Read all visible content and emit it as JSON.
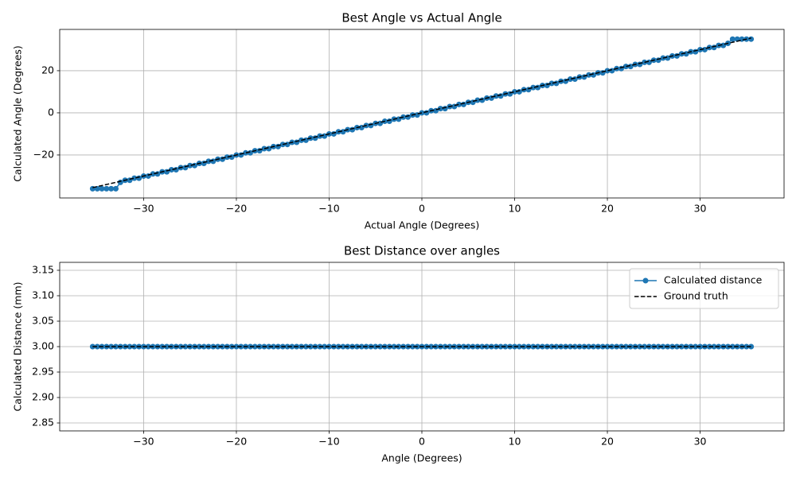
{
  "chart_data": [
    {
      "type": "line",
      "title": "Best Angle vs Actual Angle",
      "xlabel": "Actual Angle (Degrees)",
      "ylabel": "Calculated Angle (Degrees)",
      "xlim": [
        -39.05,
        39.05
      ],
      "ylim": [
        -40.4,
        39.6
      ],
      "grid": true,
      "xticks": [
        {
          "value": -30,
          "label": "−30"
        },
        {
          "value": -20,
          "label": "−20"
        },
        {
          "value": -10,
          "label": "−10"
        },
        0,
        10,
        20,
        30
      ],
      "yticks": [
        {
          "value": -20,
          "label": "−20"
        },
        0,
        20
      ],
      "x": [
        -35.5,
        -35,
        -34.5,
        -34,
        -33.5,
        -33,
        -32.5,
        -32,
        -31.5,
        -31,
        -30.5,
        -30,
        -29.5,
        -29,
        -28.5,
        -28,
        -27.5,
        -27,
        -26.5,
        -26,
        -25.5,
        -25,
        -24.5,
        -24,
        -23.5,
        -23,
        -22.5,
        -22,
        -21.5,
        -21,
        -20.5,
        -20,
        -19.5,
        -19,
        -18.5,
        -18,
        -17.5,
        -17,
        -16.5,
        -16,
        -15.5,
        -15,
        -14.5,
        -14,
        -13.5,
        -13,
        -12.5,
        -12,
        -11.5,
        -11,
        -10.5,
        -10,
        -9.5,
        -9,
        -8.5,
        -8,
        -7.5,
        -7,
        -6.5,
        -6,
        -5.5,
        -5,
        -4.5,
        -4,
        -3.5,
        -3,
        -2.5,
        -2,
        -1.5,
        -1,
        -0.5,
        0,
        0.5,
        1,
        1.5,
        2,
        2.5,
        3,
        3.5,
        4,
        4.5,
        5,
        5.5,
        6,
        6.5,
        7,
        7.5,
        8,
        8.5,
        9,
        9.5,
        10,
        10.5,
        11,
        11.5,
        12,
        12.5,
        13,
        13.5,
        14,
        14.5,
        15,
        15.5,
        16,
        16.5,
        17,
        17.5,
        18,
        18.5,
        19,
        19.5,
        20,
        20.5,
        21,
        21.5,
        22,
        22.5,
        23,
        23.5,
        24,
        24.5,
        25,
        25.5,
        26,
        26.5,
        27,
        27.5,
        28,
        28.5,
        29,
        29.5,
        30,
        30.5,
        31,
        31.5,
        32,
        32.5,
        33,
        33.5,
        34,
        34.5,
        35,
        35.5
      ],
      "series": [
        {
          "color": "#1f77b4",
          "marker": "o",
          "values": [
            -36,
            -36,
            -36,
            -36,
            -36,
            -36,
            -33,
            -32,
            -32,
            -31,
            -31,
            -30,
            -30,
            -29,
            -29,
            -28,
            -28,
            -27,
            -27,
            -26,
            -26,
            -25,
            -25,
            -24,
            -24,
            -23,
            -23,
            -22,
            -22,
            -21,
            -21,
            -20,
            -20,
            -19,
            -19,
            -18,
            -18,
            -17,
            -17,
            -16,
            -16,
            -15,
            -15,
            -14,
            -14,
            -13,
            -13,
            -12,
            -12,
            -11,
            -11,
            -10,
            -10,
            -9,
            -9,
            -8,
            -8,
            -7,
            -7,
            -6,
            -6,
            -5,
            -5,
            -4,
            -4,
            -3,
            -3,
            -2,
            -2,
            -1,
            -1,
            0,
            0,
            1,
            1,
            2,
            2,
            3,
            3,
            4,
            4,
            5,
            5,
            6,
            6,
            7,
            7,
            8,
            8,
            9,
            9,
            10,
            10,
            11,
            11,
            12,
            12,
            13,
            13,
            14,
            14,
            15,
            15,
            16,
            16,
            17,
            17,
            18,
            18,
            19,
            19,
            20,
            20,
            21,
            21,
            22,
            22,
            23,
            23,
            24,
            24,
            25,
            25,
            26,
            26,
            27,
            27,
            28,
            28,
            29,
            29,
            30,
            30,
            31,
            31,
            32,
            32,
            33,
            35,
            35,
            35,
            35,
            35
          ]
        },
        {
          "color": "#000000",
          "linestyle": "dashed",
          "x": [
            -35.5,
            35.5
          ],
          "values": [
            -35.5,
            35.5
          ]
        }
      ]
    },
    {
      "type": "line",
      "title": "Best Distance over angles",
      "xlabel": "Angle (Degrees)",
      "ylabel": "Calculated Distance (mm)",
      "xlim": [
        -39.05,
        39.05
      ],
      "ylim": [
        2.8344,
        3.1656
      ],
      "grid": true,
      "legend": "upper right",
      "xticks": [
        {
          "value": -30,
          "label": "−30"
        },
        {
          "value": -20,
          "label": "−20"
        },
        {
          "value": -10,
          "label": "−10"
        },
        0,
        10,
        20,
        30
      ],
      "yticks": [
        2.85,
        {
          "value": 2.9,
          "label": "2.90"
        },
        2.95,
        {
          "value": 3.0,
          "label": "3.00"
        },
        3.05,
        {
          "value": 3.1,
          "label": "3.10"
        },
        3.15
      ],
      "x": [
        -35.5,
        -35,
        -34.5,
        -34,
        -33.5,
        -33,
        -32.5,
        -32,
        -31.5,
        -31,
        -30.5,
        -30,
        -29.5,
        -29,
        -28.5,
        -28,
        -27.5,
        -27,
        -26.5,
        -26,
        -25.5,
        -25,
        -24.5,
        -24,
        -23.5,
        -23,
        -22.5,
        -22,
        -21.5,
        -21,
        -20.5,
        -20,
        -19.5,
        -19,
        -18.5,
        -18,
        -17.5,
        -17,
        -16.5,
        -16,
        -15.5,
        -15,
        -14.5,
        -14,
        -13.5,
        -13,
        -12.5,
        -12,
        -11.5,
        -11,
        -10.5,
        -10,
        -9.5,
        -9,
        -8.5,
        -8,
        -7.5,
        -7,
        -6.5,
        -6,
        -5.5,
        -5,
        -4.5,
        -4,
        -3.5,
        -3,
        -2.5,
        -2,
        -1.5,
        -1,
        -0.5,
        0,
        0.5,
        1,
        1.5,
        2,
        2.5,
        3,
        3.5,
        4,
        4.5,
        5,
        5.5,
        6,
        6.5,
        7,
        7.5,
        8,
        8.5,
        9,
        9.5,
        10,
        10.5,
        11,
        11.5,
        12,
        12.5,
        13,
        13.5,
        14,
        14.5,
        15,
        15.5,
        16,
        16.5,
        17,
        17.5,
        18,
        18.5,
        19,
        19.5,
        20,
        20.5,
        21,
        21.5,
        22,
        22.5,
        23,
        23.5,
        24,
        24.5,
        25,
        25.5,
        26,
        26.5,
        27,
        27.5,
        28,
        28.5,
        29,
        29.5,
        30,
        30.5,
        31,
        31.5,
        32,
        32.5,
        33,
        33.5,
        34,
        34.5,
        35,
        35.5
      ],
      "series": [
        {
          "name": "Calculated distance",
          "color": "#1f77b4",
          "marker": "o",
          "values": [
            3,
            3,
            3,
            3,
            3,
            3,
            3,
            3,
            3,
            3,
            3,
            3,
            3,
            3,
            3,
            3,
            3,
            3,
            3,
            3,
            3,
            3,
            3,
            3,
            3,
            3,
            3,
            3,
            3,
            3,
            3,
            3,
            3,
            3,
            3,
            3,
            3,
            3,
            3,
            3,
            3,
            3,
            3,
            3,
            3,
            3,
            3,
            3,
            3,
            3,
            3,
            3,
            3,
            3,
            3,
            3,
            3,
            3,
            3,
            3,
            3,
            3,
            3,
            3,
            3,
            3,
            3,
            3,
            3,
            3,
            3,
            3,
            3,
            3,
            3,
            3,
            3,
            3,
            3,
            3,
            3,
            3,
            3,
            3,
            3,
            3,
            3,
            3,
            3,
            3,
            3,
            3,
            3,
            3,
            3,
            3,
            3,
            3,
            3,
            3,
            3,
            3,
            3,
            3,
            3,
            3,
            3,
            3,
            3,
            3,
            3,
            3,
            3,
            3,
            3,
            3,
            3,
            3,
            3,
            3,
            3,
            3,
            3,
            3,
            3,
            3,
            3,
            3,
            3,
            3,
            3,
            3,
            3,
            3,
            3,
            3,
            3,
            3,
            3,
            3,
            3,
            3,
            3
          ]
        },
        {
          "name": "Ground truth",
          "color": "#000000",
          "linestyle": "dashed",
          "x": [
            -35.5,
            35.5
          ],
          "values": [
            3,
            3
          ]
        }
      ]
    }
  ]
}
